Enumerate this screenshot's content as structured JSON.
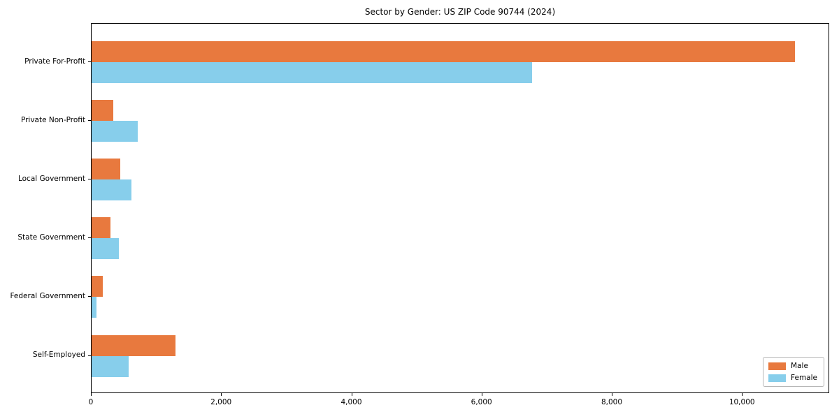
{
  "title": "Sector by Gender: US ZIP Code 90744 (2024)",
  "chart_data": {
    "type": "bar",
    "orientation": "horizontal",
    "title": "Sector by Gender: US ZIP Code 90744 (2024)",
    "categories": [
      "Private For-Profit",
      "Private Non-Profit",
      "Local Government",
      "State Government",
      "Federal Government",
      "Self-Employed"
    ],
    "series": [
      {
        "name": "Male",
        "color": "#e8793e",
        "values": [
          10800,
          330,
          440,
          290,
          170,
          1290
        ]
      },
      {
        "name": "Female",
        "color": "#87ceeb",
        "values": [
          6760,
          710,
          610,
          415,
          80,
          570
        ]
      }
    ],
    "xlabel": "",
    "ylabel": "",
    "xlim": [
      0,
      11340
    ],
    "x_ticks": [
      0,
      2000,
      4000,
      6000,
      8000,
      10000
    ],
    "x_tick_labels": [
      "0",
      "2,000",
      "4,000",
      "6,000",
      "8,000",
      "10,000"
    ],
    "grid": false,
    "legend": {
      "position": "lower right",
      "entries": [
        "Male",
        "Female"
      ]
    }
  }
}
